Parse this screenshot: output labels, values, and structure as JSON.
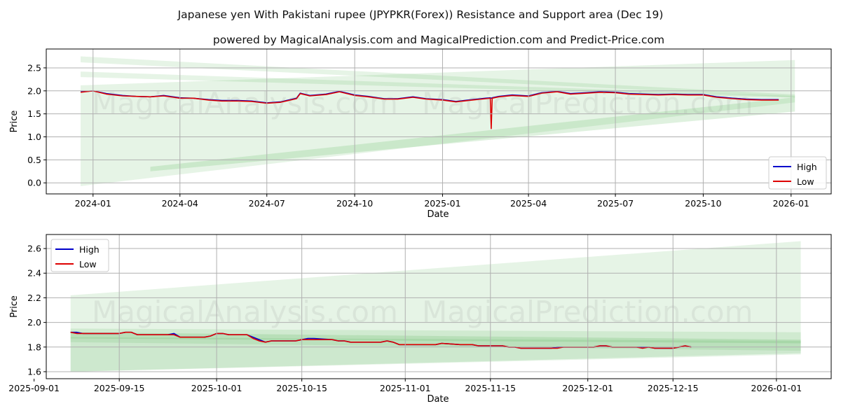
{
  "title": "Japanese yen With Pakistani rupee (JPYPKR(Forex)) Resistance and Support area (Dec 19)",
  "subtitle": "powered by MagicalAnalysis.com and MagicalPrediction.com and Predict-Price.com",
  "watermarks": [
    "MagicalAnalysis.com",
    "MagicalPrediction.com"
  ],
  "colors": {
    "high": "#0000cc",
    "low": "#dd0000",
    "band": "#4caf50"
  },
  "chart_data": [
    {
      "type": "line",
      "xlabel": "Date",
      "ylabel": "Price",
      "xlim": [
        "2023-11-13",
        "2026-02-12"
      ],
      "ylim": [
        -0.24,
        2.91
      ],
      "yticks": [
        0.0,
        0.5,
        1.0,
        1.5,
        2.0,
        2.5
      ],
      "ytick_labels": [
        "0.0",
        "0.5",
        "1.0",
        "1.5",
        "2.0",
        "2.5"
      ],
      "xticks": [
        "2024-01-01",
        "2024-04-01",
        "2024-07-01",
        "2024-10-01",
        "2025-01-01",
        "2025-04-01",
        "2025-07-01",
        "2025-10-01",
        "2026-01-01"
      ],
      "xtick_labels": [
        "2024-01",
        "2024-04",
        "2024-07",
        "2024-10",
        "2025-01",
        "2025-04",
        "2025-07",
        "2025-10",
        "2026-01"
      ],
      "grid": true,
      "legend": {
        "position": "lower-right",
        "entries": [
          "High",
          "Low"
        ]
      },
      "bands": [
        {
          "x": [
            "2023-12-19",
            "2026-01-05"
          ],
          "start": [
            -0.07,
            2.12
          ],
          "end": [
            1.75,
            2.67
          ],
          "opacity": 0.14
        },
        {
          "x": [
            "2023-12-19",
            "2026-01-05"
          ],
          "start": [
            2.62,
            2.75
          ],
          "end": [
            1.86,
            1.92
          ],
          "opacity": 0.14
        },
        {
          "x": [
            "2023-12-19",
            "2026-01-05"
          ],
          "start": [
            2.3,
            2.42
          ],
          "end": [
            1.85,
            1.89
          ],
          "opacity": 0.14
        },
        {
          "x": [
            "2024-03-01",
            "2026-01-05"
          ],
          "start": [
            0.25,
            0.35
          ],
          "end": [
            1.55,
            1.86
          ],
          "opacity": 0.18
        }
      ],
      "dates": [
        "2023-12-19",
        "2024-01-01",
        "2024-01-15",
        "2024-02-01",
        "2024-02-15",
        "2024-03-01",
        "2024-03-15",
        "2024-04-01",
        "2024-04-15",
        "2024-05-01",
        "2024-05-15",
        "2024-06-01",
        "2024-06-15",
        "2024-07-01",
        "2024-07-15",
        "2024-08-01",
        "2024-08-05",
        "2024-08-15",
        "2024-09-01",
        "2024-09-15",
        "2024-10-01",
        "2024-10-15",
        "2024-11-01",
        "2024-11-15",
        "2024-12-01",
        "2024-12-15",
        "2025-01-01",
        "2025-01-15",
        "2025-02-01",
        "2025-02-15",
        "2025-02-20",
        "2025-02-21",
        "2025-02-22",
        "2025-03-01",
        "2025-03-15",
        "2025-04-01",
        "2025-04-15",
        "2025-05-01",
        "2025-05-15",
        "2025-06-01",
        "2025-06-15",
        "2025-07-01",
        "2025-07-15",
        "2025-08-01",
        "2025-08-15",
        "2025-09-01",
        "2025-09-15",
        "2025-10-01",
        "2025-10-15",
        "2025-11-01",
        "2025-11-15",
        "2025-12-01",
        "2025-12-19"
      ],
      "series": [
        {
          "name": "High",
          "values": [
            1.98,
            2.0,
            1.94,
            1.9,
            1.88,
            1.87,
            1.9,
            1.85,
            1.84,
            1.81,
            1.79,
            1.79,
            1.78,
            1.74,
            1.76,
            1.84,
            1.95,
            1.9,
            1.93,
            1.99,
            1.91,
            1.88,
            1.83,
            1.83,
            1.87,
            1.83,
            1.81,
            1.77,
            1.81,
            1.84,
            1.85,
            1.84,
            1.85,
            1.88,
            1.91,
            1.89,
            1.96,
            1.99,
            1.94,
            1.96,
            1.98,
            1.97,
            1.94,
            1.93,
            1.92,
            1.93,
            1.92,
            1.92,
            1.87,
            1.84,
            1.82,
            1.81,
            1.81
          ]
        },
        {
          "name": "Low",
          "values": [
            1.97,
            2.0,
            1.93,
            1.89,
            1.88,
            1.87,
            1.89,
            1.84,
            1.84,
            1.8,
            1.78,
            1.78,
            1.77,
            1.73,
            1.75,
            1.83,
            1.94,
            1.89,
            1.92,
            1.98,
            1.9,
            1.87,
            1.82,
            1.82,
            1.86,
            1.82,
            1.8,
            1.76,
            1.8,
            1.83,
            1.84,
            1.18,
            1.84,
            1.87,
            1.9,
            1.88,
            1.95,
            1.98,
            1.93,
            1.95,
            1.97,
            1.96,
            1.93,
            1.92,
            1.91,
            1.92,
            1.91,
            1.91,
            1.86,
            1.83,
            1.81,
            1.8,
            1.8
          ]
        }
      ]
    },
    {
      "type": "line",
      "xlabel": "Date",
      "ylabel": "Price",
      "xlim": [
        "2025-09-03",
        "2026-01-10"
      ],
      "ylim": [
        1.543,
        2.714
      ],
      "yticks": [
        1.6,
        1.8,
        2.0,
        2.2,
        2.4,
        2.6
      ],
      "ytick_labels": [
        "1.6",
        "1.8",
        "2.0",
        "2.2",
        "2.4",
        "2.6"
      ],
      "xticks": [
        "2025-09-01",
        "2025-09-15",
        "2025-10-01",
        "2025-10-15",
        "2025-11-01",
        "2025-11-15",
        "2025-12-01",
        "2025-12-15",
        "2026-01-01"
      ],
      "xtick_labels": [
        "2025-09-01",
        "2025-09-15",
        "2025-10-01",
        "2025-10-15",
        "2025-11-01",
        "2025-11-15",
        "2025-12-01",
        "2025-12-15",
        "2026-01-01"
      ],
      "grid": true,
      "legend": {
        "position": "upper-left",
        "entries": [
          "High",
          "Low"
        ]
      },
      "bands": [
        {
          "x": [
            "2025-09-07",
            "2026-01-05"
          ],
          "start": [
            1.6,
            2.22
          ],
          "end": [
            1.74,
            2.66
          ],
          "opacity": 0.14
        },
        {
          "x": [
            "2025-09-07",
            "2026-01-05"
          ],
          "start": [
            1.6,
            1.88
          ],
          "end": [
            1.75,
            1.85
          ],
          "opacity": 0.16
        },
        {
          "x": [
            "2025-09-07",
            "2026-01-05"
          ],
          "start": [
            1.84,
            1.95
          ],
          "end": [
            1.77,
            1.92
          ],
          "opacity": 0.14
        },
        {
          "x": [
            "2025-09-07",
            "2026-01-05"
          ],
          "start": [
            1.87,
            1.92
          ],
          "end": [
            1.83,
            1.86
          ],
          "opacity": 0.18
        }
      ],
      "dates": [
        "2025-09-07",
        "2025-09-08",
        "2025-09-09",
        "2025-09-10",
        "2025-09-11",
        "2025-09-12",
        "2025-09-15",
        "2025-09-16",
        "2025-09-17",
        "2025-09-18",
        "2025-09-19",
        "2025-09-22",
        "2025-09-23",
        "2025-09-24",
        "2025-09-25",
        "2025-09-26",
        "2025-09-29",
        "2025-09-30",
        "2025-10-01",
        "2025-10-02",
        "2025-10-03",
        "2025-10-06",
        "2025-10-07",
        "2025-10-08",
        "2025-10-09",
        "2025-10-10",
        "2025-10-13",
        "2025-10-14",
        "2025-10-15",
        "2025-10-16",
        "2025-10-17",
        "2025-10-20",
        "2025-10-21",
        "2025-10-22",
        "2025-10-23",
        "2025-10-24",
        "2025-10-27",
        "2025-10-28",
        "2025-10-29",
        "2025-10-30",
        "2025-10-31",
        "2025-11-03",
        "2025-11-04",
        "2025-11-05",
        "2025-11-06",
        "2025-11-07",
        "2025-11-10",
        "2025-11-11",
        "2025-11-12",
        "2025-11-13",
        "2025-11-14",
        "2025-11-17",
        "2025-11-18",
        "2025-11-19",
        "2025-11-20",
        "2025-11-21",
        "2025-11-24",
        "2025-11-25",
        "2025-11-26",
        "2025-11-27",
        "2025-11-28",
        "2025-12-01",
        "2025-12-02",
        "2025-12-03",
        "2025-12-04",
        "2025-12-05",
        "2025-12-08",
        "2025-12-09",
        "2025-12-10",
        "2025-12-11",
        "2025-12-12",
        "2025-12-15",
        "2025-12-16",
        "2025-12-17",
        "2025-12-18"
      ],
      "series": [
        {
          "name": "High",
          "values": [
            1.92,
            1.92,
            1.91,
            1.91,
            1.91,
            1.91,
            1.91,
            1.92,
            1.92,
            1.9,
            1.9,
            1.9,
            1.9,
            1.91,
            1.88,
            1.88,
            1.88,
            1.89,
            1.91,
            1.91,
            1.9,
            1.9,
            1.88,
            1.86,
            1.84,
            1.85,
            1.85,
            1.85,
            1.86,
            1.87,
            1.87,
            1.86,
            1.85,
            1.85,
            1.84,
            1.84,
            1.84,
            1.84,
            1.85,
            1.84,
            1.82,
            1.82,
            1.82,
            1.82,
            1.82,
            1.83,
            1.82,
            1.82,
            1.82,
            1.81,
            1.81,
            1.81,
            1.8,
            1.8,
            1.79,
            1.79,
            1.79,
            1.79,
            1.8,
            1.8,
            1.8,
            1.8,
            1.8,
            1.81,
            1.81,
            1.8,
            1.8,
            1.8,
            1.8,
            1.8,
            1.79,
            1.79,
            1.8,
            1.81,
            1.8
          ]
        },
        {
          "name": "Low",
          "values": [
            1.92,
            1.91,
            1.91,
            1.91,
            1.91,
            1.91,
            1.91,
            1.92,
            1.92,
            1.9,
            1.9,
            1.9,
            1.9,
            1.9,
            1.88,
            1.88,
            1.88,
            1.89,
            1.91,
            1.91,
            1.9,
            1.9,
            1.87,
            1.85,
            1.84,
            1.85,
            1.85,
            1.85,
            1.86,
            1.86,
            1.86,
            1.86,
            1.85,
            1.85,
            1.84,
            1.84,
            1.84,
            1.84,
            1.85,
            1.84,
            1.82,
            1.82,
            1.82,
            1.82,
            1.82,
            1.83,
            1.82,
            1.82,
            1.82,
            1.81,
            1.81,
            1.81,
            1.8,
            1.8,
            1.79,
            1.79,
            1.79,
            1.79,
            1.79,
            1.8,
            1.8,
            1.8,
            1.8,
            1.81,
            1.81,
            1.8,
            1.8,
            1.8,
            1.79,
            1.8,
            1.79,
            1.79,
            1.8,
            1.81,
            1.8
          ]
        }
      ]
    }
  ]
}
